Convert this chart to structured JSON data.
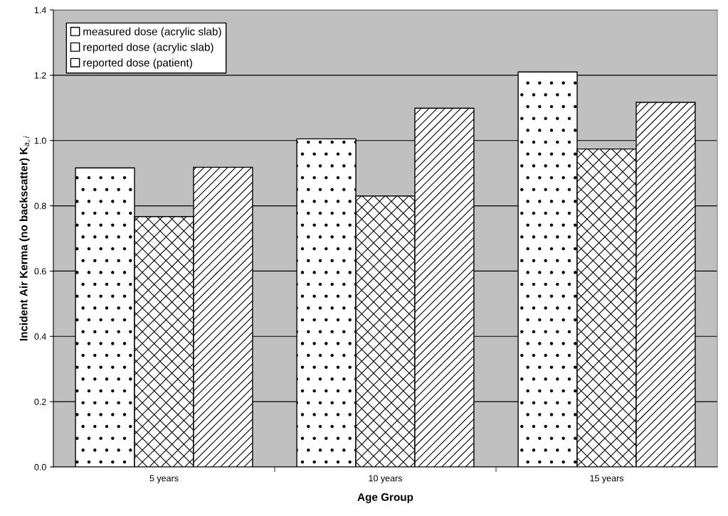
{
  "chart_data": {
    "type": "bar",
    "xlabel": "Age Group",
    "ylabel": "Incident Air Kerma (no backscatter) K$_{a,i}$",
    "categories": [
      "5 years",
      "10 years",
      "15 years"
    ],
    "series": [
      {
        "name": "measured dose (acrylic slab)",
        "color": "#ffffff",
        "values": [
          0.916,
          1.005,
          1.21
        ]
      },
      {
        "name": "reported dose (acrylic slab)",
        "color": "#ffffff",
        "values": [
          0.767,
          0.83,
          0.974
        ]
      },
      {
        "name": "reported dose (patient)",
        "color": "#ffffff",
        "values": [
          0.918,
          1.099,
          1.117
        ]
      }
    ],
    "ylim": [
      0,
      1.4
    ],
    "yticks": [
      {
        "value": 0,
        "label": "0.0"
      },
      {
        "value": 0.2,
        "label": "0.2"
      },
      {
        "value": 0.4,
        "label": "0.4"
      },
      {
        "value": 0.6,
        "label": "0.6"
      },
      {
        "value": 0.8,
        "label": "0.8"
      },
      {
        "value": 1.0,
        "label": "1.0"
      },
      {
        "value": 1.2,
        "label": "1.2"
      },
      {
        "value": 1.4,
        "label": "1.4"
      }
    ],
    "grid": "y",
    "legend": "top left"
  }
}
